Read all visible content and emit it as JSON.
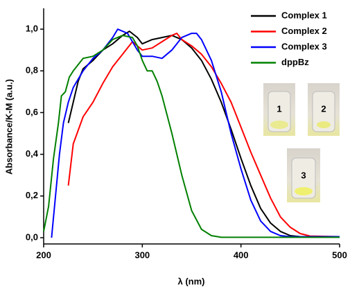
{
  "chart_data": {
    "type": "line",
    "xlabel": "λ (nm)",
    "ylabel": "Absorbance/K-M (a.u.)",
    "xlim": [
      200,
      500
    ],
    "xticks": [
      200,
      300,
      400,
      500
    ],
    "ylim": [
      -0.03,
      1.1
    ],
    "yticks": [
      {
        "value": 0,
        "label": "0,0"
      },
      {
        "value": 0.2,
        "label": "0,2"
      },
      {
        "value": 0.4,
        "label": "0,4"
      },
      {
        "value": 0.6,
        "label": "0,6"
      },
      {
        "value": 0.8,
        "label": "0,8"
      },
      {
        "value": 1.0,
        "label": "1,0"
      }
    ],
    "legend": "top-right",
    "series": [
      {
        "name": "Complex 1",
        "color": "#000000",
        "x": [
          225,
          235,
          240,
          250,
          260,
          270,
          280,
          287,
          295,
          300,
          310,
          320,
          330,
          340,
          350,
          360,
          370,
          380,
          390,
          400,
          410,
          420,
          430,
          440,
          450,
          460,
          500
        ],
        "values": [
          0.55,
          0.75,
          0.81,
          0.85,
          0.9,
          0.93,
          0.97,
          0.99,
          0.96,
          0.93,
          0.95,
          0.96,
          0.97,
          0.95,
          0.91,
          0.85,
          0.76,
          0.65,
          0.52,
          0.38,
          0.25,
          0.14,
          0.07,
          0.03,
          0.01,
          0.005,
          0.005
        ]
      },
      {
        "name": "Complex 2",
        "color": "#ff0000",
        "x": [
          225,
          230,
          240,
          250,
          260,
          270,
          280,
          290,
          300,
          310,
          320,
          330,
          335,
          340,
          350,
          360,
          370,
          380,
          390,
          400,
          410,
          420,
          430,
          440,
          450,
          460,
          470,
          500
        ],
        "values": [
          0.25,
          0.45,
          0.58,
          0.65,
          0.74,
          0.82,
          0.88,
          0.94,
          0.9,
          0.91,
          0.94,
          0.97,
          0.98,
          0.95,
          0.92,
          0.88,
          0.82,
          0.74,
          0.65,
          0.53,
          0.41,
          0.3,
          0.19,
          0.1,
          0.05,
          0.02,
          0.008,
          0.005
        ]
      },
      {
        "name": "Complex 3",
        "color": "#0000ff",
        "x": [
          208,
          212,
          216,
          220,
          225,
          230,
          240,
          250,
          260,
          270,
          275,
          285,
          295,
          300,
          310,
          320,
          330,
          340,
          350,
          355,
          360,
          370,
          380,
          390,
          400,
          410,
          420,
          430,
          440,
          450,
          500
        ],
        "values": [
          0.0,
          0.2,
          0.4,
          0.55,
          0.65,
          0.72,
          0.8,
          0.86,
          0.9,
          0.96,
          1.0,
          0.98,
          0.9,
          0.87,
          0.87,
          0.86,
          0.9,
          0.96,
          0.98,
          0.98,
          0.95,
          0.85,
          0.7,
          0.5,
          0.33,
          0.18,
          0.08,
          0.03,
          0.01,
          0.005,
          0.005
        ]
      },
      {
        "name": "dppBz",
        "color": "#008000",
        "x": [
          200,
          205,
          210,
          215,
          218,
          222,
          226,
          230,
          240,
          250,
          260,
          270,
          280,
          290,
          295,
          300,
          305,
          310,
          315,
          320,
          330,
          340,
          350,
          360,
          370,
          380,
          500
        ],
        "values": [
          0.03,
          0.15,
          0.38,
          0.55,
          0.68,
          0.7,
          0.77,
          0.8,
          0.86,
          0.87,
          0.9,
          0.95,
          0.97,
          0.96,
          0.92,
          0.85,
          0.8,
          0.8,
          0.75,
          0.68,
          0.5,
          0.3,
          0.13,
          0.04,
          0.01,
          0.002,
          0.002
        ]
      }
    ],
    "annotations": [
      "1",
      "2",
      "3"
    ]
  }
}
